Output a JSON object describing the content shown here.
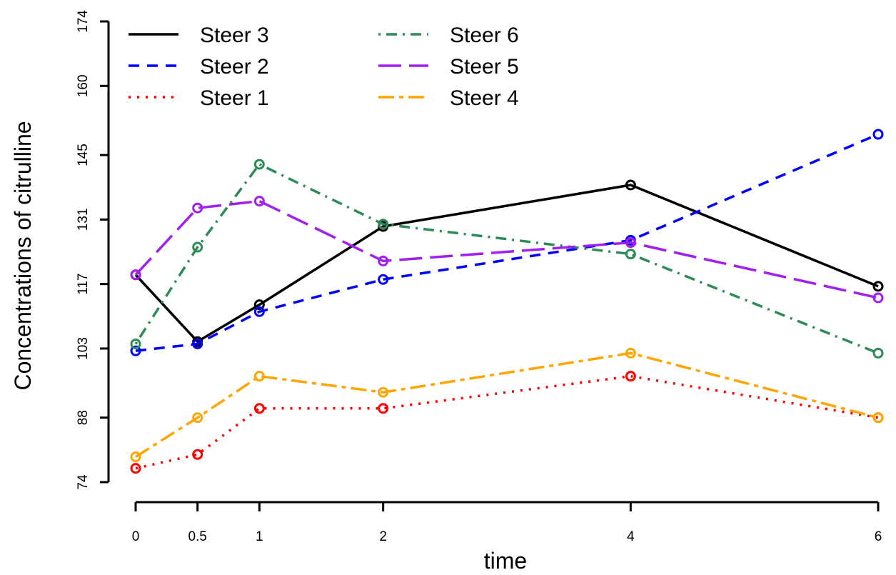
{
  "chart_data": {
    "type": "line",
    "title": "",
    "xlabel": "time",
    "ylabel": "Concentrations of citrulline",
    "x": [
      0,
      0.5,
      1,
      2,
      4,
      6
    ],
    "x_tick_labels": [
      "0",
      "0.5",
      "1",
      "2",
      "4",
      "6"
    ],
    "y_ticks": [
      74,
      88,
      103,
      117,
      131,
      145,
      160,
      174
    ],
    "xlim": [
      0,
      6
    ],
    "ylim": [
      74,
      174
    ],
    "grid": false,
    "legend_position": "top-left",
    "series": [
      {
        "name": "Steer 3",
        "color": "#000000",
        "dash": "solid",
        "values": [
          119,
          104.5,
          112.5,
          129.5,
          138.5,
          116.5
        ]
      },
      {
        "name": "Steer 2",
        "color": "#0000ff",
        "dash": "dashed",
        "values": [
          102.5,
          104,
          111,
          118,
          126.5,
          149.5
        ]
      },
      {
        "name": "Steer 1",
        "color": "#ff0000",
        "dash": "dotted",
        "values": [
          77,
          80,
          90,
          90,
          97,
          88
        ]
      },
      {
        "name": "Steer 6",
        "color": "#2e8b57",
        "dash": "dotdash",
        "values": [
          104,
          125,
          143,
          130,
          123.5,
          102
        ]
      },
      {
        "name": "Steer 5",
        "color": "#a020f0",
        "dash": "longdash",
        "values": [
          119,
          133.5,
          135,
          122,
          126,
          114
        ]
      },
      {
        "name": "Steer 4",
        "color": "#ffa500",
        "dash": "twodash",
        "values": [
          79.5,
          88,
          97,
          93.5,
          102,
          88
        ]
      }
    ]
  }
}
